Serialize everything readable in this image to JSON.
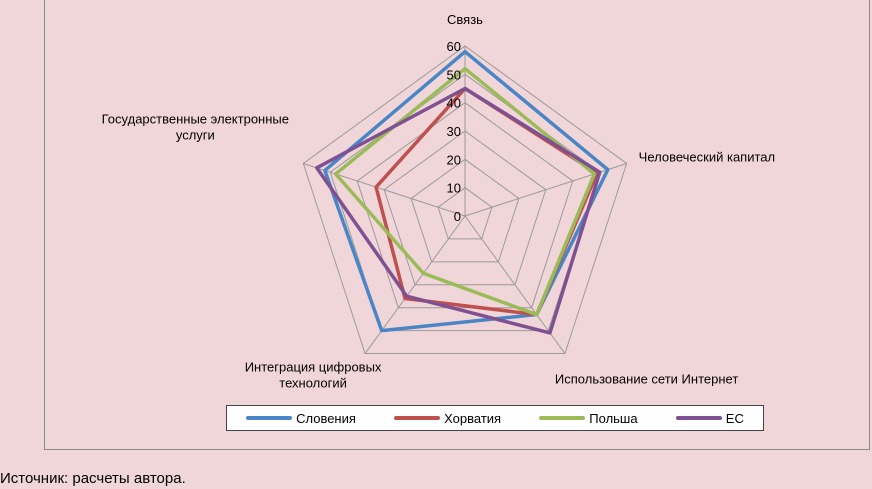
{
  "chart_data": {
    "type": "radar",
    "categories": [
      "Связь",
      "Человеческий капитал",
      "Использование сети Интернет",
      "Интеграция цифровых технологий",
      "Государственные электронные услуги"
    ],
    "category_lines": [
      [
        "Связь"
      ],
      [
        "Человеческий капитал"
      ],
      [
        "Использование сети Интернет"
      ],
      [
        "Интеграция цифровых",
        "технологий"
      ],
      [
        "Государственные электронные",
        "услуги"
      ]
    ],
    "rlim": [
      0,
      60
    ],
    "ticks": [
      0,
      10,
      20,
      30,
      40,
      50,
      60
    ],
    "tick_labels": [
      "0",
      "10",
      "20",
      "30",
      "40",
      "50",
      "60"
    ],
    "series": [
      {
        "name": "Словения",
        "color": "#4a86c5",
        "values": [
          58,
          53,
          43,
          50,
          52
        ]
      },
      {
        "name": "Хорватия",
        "color": "#c0504d",
        "values": [
          45,
          49,
          43,
          36,
          33
        ]
      },
      {
        "name": "Польша",
        "color": "#9bbb59",
        "values": [
          52,
          48,
          43,
          25,
          48
        ]
      },
      {
        "name": "ЕС",
        "color": "#7f5193",
        "values": [
          45,
          50,
          51,
          35,
          55
        ]
      }
    ],
    "legend_position": "bottom"
  },
  "source": "Источник: расчеты автора."
}
